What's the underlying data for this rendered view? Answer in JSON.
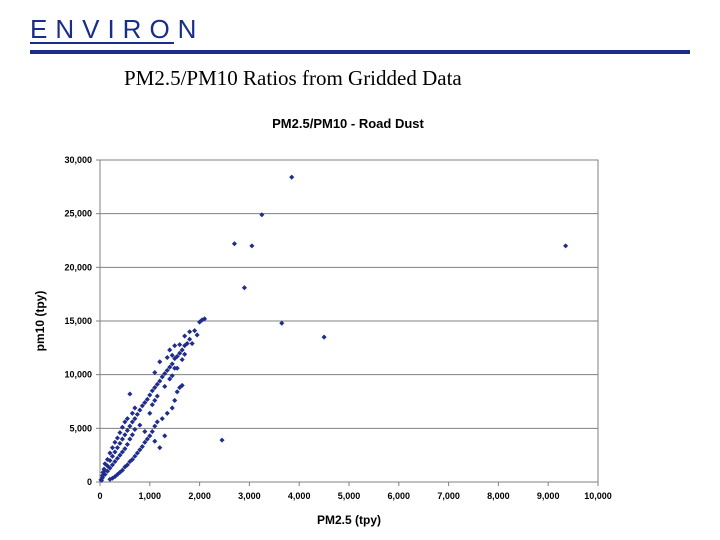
{
  "header": {
    "logo_text": "ENVIRON",
    "slide_title": "PM2.5/PM10 Ratios from Gridded Data"
  },
  "colors": {
    "brand": "#1a2d8a",
    "points": "#1f2d8c"
  },
  "chart_data": {
    "type": "scatter",
    "title": "PM2.5/PM10 - Road Dust",
    "xlabel": "PM2.5 (tpy)",
    "ylabel": "pm10 (tpy)",
    "xlim": [
      0,
      10000
    ],
    "ylim": [
      0,
      30000
    ],
    "xticks": [
      0,
      1000,
      2000,
      3000,
      4000,
      5000,
      6000,
      7000,
      8000,
      9000,
      10000
    ],
    "xtick_labels": [
      "0",
      "1,000",
      "2,000",
      "3,000",
      "4,000",
      "5,000",
      "6,000",
      "7,000",
      "8,000",
      "9,000",
      "10,000"
    ],
    "yticks": [
      0,
      5000,
      10000,
      15000,
      20000,
      25000,
      30000
    ],
    "ytick_labels": [
      "0",
      "5,000",
      "10,000",
      "15,000",
      "20,000",
      "25,000",
      "30,000"
    ],
    "grid": "horizontal",
    "points": [
      [
        3850,
        28400
      ],
      [
        3250,
        24900
      ],
      [
        2700,
        22200
      ],
      [
        3050,
        22000
      ],
      [
        9350,
        22000
      ],
      [
        2900,
        18100
      ],
      [
        3650,
        14800
      ],
      [
        4500,
        13500
      ],
      [
        2450,
        3900
      ],
      [
        2100,
        15200
      ],
      [
        2000,
        14900
      ],
      [
        1900,
        14100
      ],
      [
        1800,
        13300
      ],
      [
        1750,
        12900
      ],
      [
        1700,
        12700
      ],
      [
        1650,
        12300
      ],
      [
        1600,
        12000
      ],
      [
        1550,
        11700
      ],
      [
        1500,
        11500
      ],
      [
        1450,
        11000
      ],
      [
        1400,
        10700
      ],
      [
        1350,
        10400
      ],
      [
        1300,
        10100
      ],
      [
        1250,
        9800
      ],
      [
        1200,
        9400
      ],
      [
        1150,
        9100
      ],
      [
        1100,
        8800
      ],
      [
        1050,
        8500
      ],
      [
        1000,
        8100
      ],
      [
        950,
        7700
      ],
      [
        900,
        7400
      ],
      [
        850,
        7100
      ],
      [
        800,
        6700
      ],
      [
        750,
        6300
      ],
      [
        700,
        5900
      ],
      [
        650,
        5600
      ],
      [
        600,
        5200
      ],
      [
        550,
        4800
      ],
      [
        500,
        4400
      ],
      [
        450,
        4000
      ],
      [
        400,
        3600
      ],
      [
        350,
        3200
      ],
      [
        300,
        2800
      ],
      [
        250,
        2400
      ],
      [
        200,
        2000
      ],
      [
        150,
        1500
      ],
      [
        100,
        1100
      ],
      [
        50,
        600
      ],
      [
        20,
        200
      ],
      [
        1200,
        11200
      ],
      [
        1450,
        11800
      ],
      [
        1500,
        10600
      ],
      [
        1650,
        9000
      ],
      [
        1600,
        8800
      ],
      [
        1550,
        8400
      ],
      [
        1500,
        7600
      ],
      [
        1450,
        6900
      ],
      [
        1350,
        6400
      ],
      [
        1250,
        5900
      ],
      [
        1150,
        5600
      ],
      [
        1100,
        5200
      ],
      [
        1050,
        4700
      ],
      [
        1000,
        4300
      ],
      [
        950,
        4000
      ],
      [
        900,
        3700
      ],
      [
        850,
        3300
      ],
      [
        800,
        3000
      ],
      [
        750,
        2700
      ],
      [
        700,
        2400
      ],
      [
        650,
        2100
      ],
      [
        600,
        1900
      ],
      [
        550,
        1600
      ],
      [
        500,
        1400
      ],
      [
        450,
        1100
      ],
      [
        400,
        900
      ],
      [
        350,
        700
      ],
      [
        300,
        500
      ],
      [
        250,
        350
      ],
      [
        200,
        250
      ],
      [
        600,
        8200
      ],
      [
        700,
        6900
      ],
      [
        650,
        6400
      ],
      [
        500,
        5600
      ],
      [
        550,
        5900
      ],
      [
        450,
        5100
      ],
      [
        400,
        4600
      ],
      [
        350,
        4100
      ],
      [
        300,
        3700
      ],
      [
        250,
        3200
      ],
      [
        200,
        2700
      ],
      [
        150,
        2100
      ],
      [
        100,
        1700
      ],
      [
        80,
        1200
      ],
      [
        60,
        900
      ],
      [
        1200,
        3200
      ],
      [
        1100,
        3800
      ],
      [
        1300,
        4300
      ],
      [
        900,
        4700
      ],
      [
        800,
        5300
      ],
      [
        700,
        4900
      ],
      [
        650,
        4400
      ],
      [
        600,
        4000
      ],
      [
        550,
        3500
      ],
      [
        500,
        3100
      ],
      [
        450,
        2800
      ],
      [
        400,
        2500
      ],
      [
        350,
        2200
      ],
      [
        300,
        1900
      ],
      [
        250,
        1600
      ],
      [
        200,
        1300
      ],
      [
        150,
        1000
      ],
      [
        100,
        700
      ],
      [
        50,
        400
      ],
      [
        30,
        150
      ],
      [
        1000,
        6400
      ],
      [
        1050,
        7200
      ],
      [
        1100,
        7600
      ],
      [
        1150,
        8000
      ],
      [
        1300,
        8900
      ],
      [
        1400,
        9600
      ],
      [
        1450,
        9900
      ],
      [
        1550,
        10600
      ],
      [
        1650,
        11400
      ],
      [
        1700,
        11900
      ],
      [
        1850,
        12900
      ],
      [
        1950,
        13700
      ],
      [
        2050,
        15100
      ],
      [
        1600,
        12800
      ],
      [
        1800,
        14000
      ],
      [
        1700,
        13600
      ],
      [
        1500,
        12700
      ],
      [
        1400,
        12300
      ],
      [
        1350,
        11600
      ],
      [
        1100,
        10200
      ]
    ]
  }
}
